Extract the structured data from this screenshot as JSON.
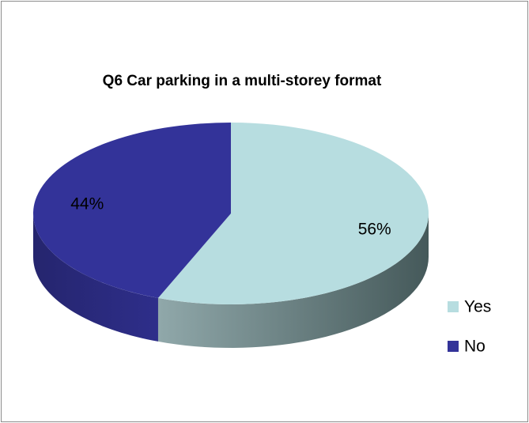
{
  "chart_data": {
    "type": "pie",
    "title": "Q6 Car parking in a multi-storey format",
    "categories": [
      "Yes",
      "No"
    ],
    "values": [
      56,
      44
    ],
    "value_labels": [
      "56%",
      "44%"
    ],
    "colors": [
      "#b7dde0",
      "#333399"
    ],
    "legend": "right"
  }
}
